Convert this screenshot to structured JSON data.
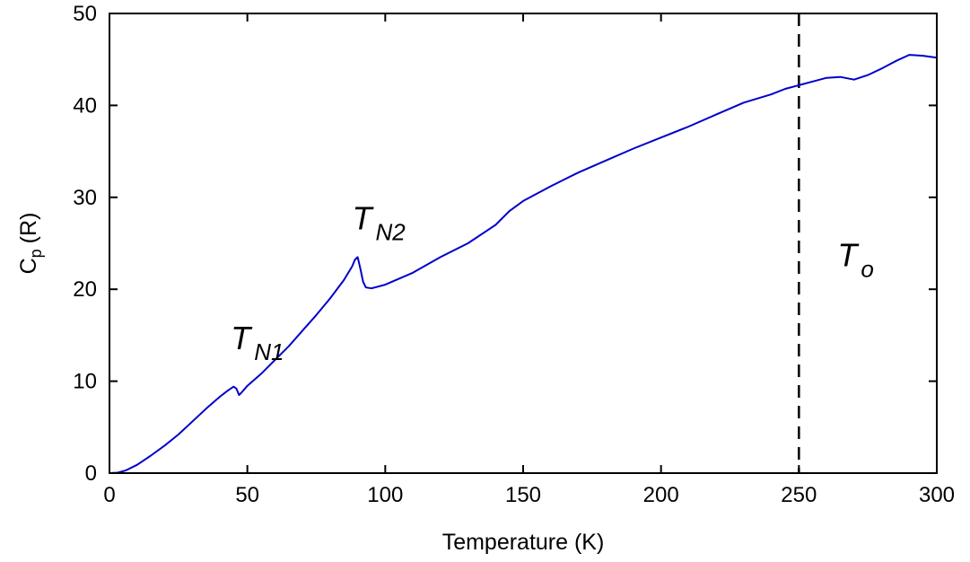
{
  "chart_data": {
    "type": "line",
    "title": "",
    "xlabel": "Temperature (K)",
    "ylabel": {
      "main": "C",
      "sub": "p",
      "unit": "(R)"
    },
    "xlim": [
      0,
      300
    ],
    "ylim": [
      0,
      50
    ],
    "xticks": [
      0,
      50,
      100,
      150,
      200,
      250,
      300
    ],
    "yticks": [
      0,
      10,
      20,
      30,
      40,
      50
    ],
    "grid": false,
    "line_color": "#0000cc",
    "series": [
      {
        "name": "Cp",
        "x": [
          0,
          3,
          6,
          10,
          15,
          20,
          25,
          30,
          35,
          40,
          43,
          45,
          46,
          47,
          48,
          50,
          55,
          60,
          65,
          70,
          75,
          80,
          85,
          88,
          89,
          90,
          91,
          92,
          93,
          95,
          100,
          110,
          120,
          130,
          140,
          145,
          150,
          160,
          170,
          180,
          190,
          200,
          210,
          220,
          230,
          240,
          245,
          250,
          255,
          260,
          265,
          270,
          275,
          280,
          285,
          290,
          295,
          300
        ],
        "y": [
          0,
          0.05,
          0.3,
          0.9,
          1.9,
          3.0,
          4.2,
          5.6,
          7.0,
          8.3,
          9.0,
          9.4,
          9.2,
          8.5,
          8.8,
          9.5,
          10.8,
          12.3,
          13.8,
          15.5,
          17.2,
          19.0,
          21.0,
          22.5,
          23.2,
          23.5,
          22.2,
          20.8,
          20.2,
          20.1,
          20.5,
          21.8,
          23.5,
          25.0,
          27.0,
          28.5,
          29.6,
          31.2,
          32.7,
          34.0,
          35.3,
          36.5,
          37.7,
          39.0,
          40.3,
          41.2,
          41.8,
          42.2,
          42.6,
          43.0,
          43.1,
          42.8,
          43.3,
          44.0,
          44.8,
          45.5,
          45.4,
          45.2
        ]
      }
    ],
    "vline": {
      "x": 250,
      "style": "dashed"
    },
    "annotations": [
      {
        "main": "T",
        "sub": "N1",
        "x": 44,
        "y": 13.5
      },
      {
        "main": "T",
        "sub": "N2",
        "x": 88,
        "y": 26.5
      },
      {
        "main": "T",
        "sub": "o",
        "x": 264,
        "y": 22.5
      }
    ]
  }
}
